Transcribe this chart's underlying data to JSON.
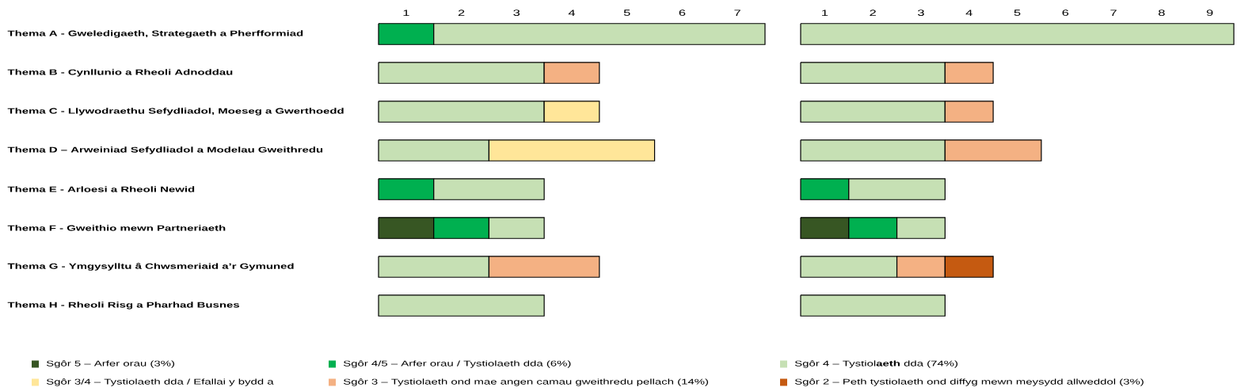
{
  "chart_data": [
    {
      "type": "bar",
      "orientation": "horizontal",
      "stacked": true,
      "categories": [
        "Thema A - Gweledigaeth, Strategaeth a Pherfformiad",
        "Thema B - Cynllunio a Rheoli Adnoddau",
        "Thema C - Llywodraethu Sefydliadol, Moeseg a Gwerthoedd",
        "Thema D – Arweiniad Sefydliadol a Modelau Gweithredu",
        "Thema E - Arloesi a Rheoli Newid",
        "Thema F - Gweithio mewn Partneriaeth",
        "Thema G - Ymgysylltu â Chwsmeriaid a’r Gymuned",
        "Thema H - Rheoli Risg a Pharhad Busnes"
      ],
      "xlim": [
        0,
        7
      ],
      "xticks": [
        {
          "value": 0.5,
          "label": "1"
        },
        {
          "value": 1.5,
          "label": "2"
        },
        {
          "value": 2.5,
          "label": "3"
        },
        {
          "value": 3.5,
          "label": "4"
        },
        {
          "value": 4.5,
          "label": "5"
        },
        {
          "value": 5.5,
          "label": "6"
        },
        {
          "value": 6.5,
          "label": "7"
        }
      ],
      "legend": "bottom",
      "series": [
        {
          "name": "Sgôr 5 – Arfer orau  (3%)",
          "color": "#375623",
          "values": [
            null,
            null,
            null,
            null,
            null,
            1,
            null,
            null
          ]
        },
        {
          "name": "Sgôr 4/5 – Arfer orau / Tystiolaeth dda (6%)",
          "color": "#00b050",
          "values": [
            1,
            null,
            null,
            null,
            1,
            1,
            null,
            null
          ]
        },
        {
          "name": "Sgôr 4 – Tystiol**aeth** dda (74%)",
          "color": "#c6e0b4",
          "values": [
            6,
            3,
            3,
            2,
            2,
            1,
            2,
            3
          ]
        },
        {
          "name": "Sgôr 3/4 – Tystiolaeth dda / Efallai y bydd a",
          "color": "#ffe699",
          "values": [
            null,
            null,
            1,
            3,
            null,
            null,
            null,
            null
          ]
        },
        {
          "name": "Sgôr 3 – Tystiolaeth ond mae angen camau gweithredu pellach (14%)",
          "color": "#f4b183",
          "values": [
            null,
            1,
            null,
            null,
            null,
            null,
            2,
            null
          ]
        },
        {
          "name": "Sgôr 2 – Peth tystiolaeth ond diffyg mewn meysydd allweddol  (3%)",
          "color": "#c55a11",
          "values": [
            null,
            null,
            null,
            null,
            null,
            null,
            null,
            null
          ]
        }
      ]
    },
    {
      "type": "bar",
      "orientation": "horizontal",
      "stacked": true,
      "categories": [
        null,
        null,
        null,
        null,
        null,
        null,
        null,
        null
      ],
      "tick_labels": "x",
      "xlim": [
        0,
        9
      ],
      "xticks": [
        {
          "value": 0.5,
          "label": "1"
        },
        {
          "value": 1.5,
          "label": "2"
        },
        {
          "value": 2.5,
          "label": "3"
        },
        {
          "value": 3.5,
          "label": "4"
        },
        {
          "value": 4.5,
          "label": "5"
        },
        {
          "value": 5.5,
          "label": "6"
        },
        {
          "value": 6.5,
          "label": "7"
        },
        {
          "value": 7.5,
          "label": "8"
        },
        {
          "value": 8.5,
          "label": "9"
        }
      ],
      "series": [
        {
          "color": "#375623",
          "values": [
            null,
            null,
            null,
            null,
            null,
            1,
            null,
            null
          ]
        },
        {
          "color": "#00b050",
          "values": [
            null,
            null,
            null,
            null,
            1,
            1,
            null,
            null
          ]
        },
        {
          "color": "#c6e0b4",
          "values": [
            9,
            3,
            3,
            3,
            2,
            1,
            2,
            3
          ]
        },
        {
          "color": "#f4b183",
          "values": [
            null,
            1,
            1,
            2,
            null,
            null,
            1,
            null
          ]
        },
        {
          "color": "#c55a11",
          "values": [
            null,
            null,
            null,
            null,
            null,
            null,
            1,
            null
          ]
        }
      ]
    }
  ]
}
